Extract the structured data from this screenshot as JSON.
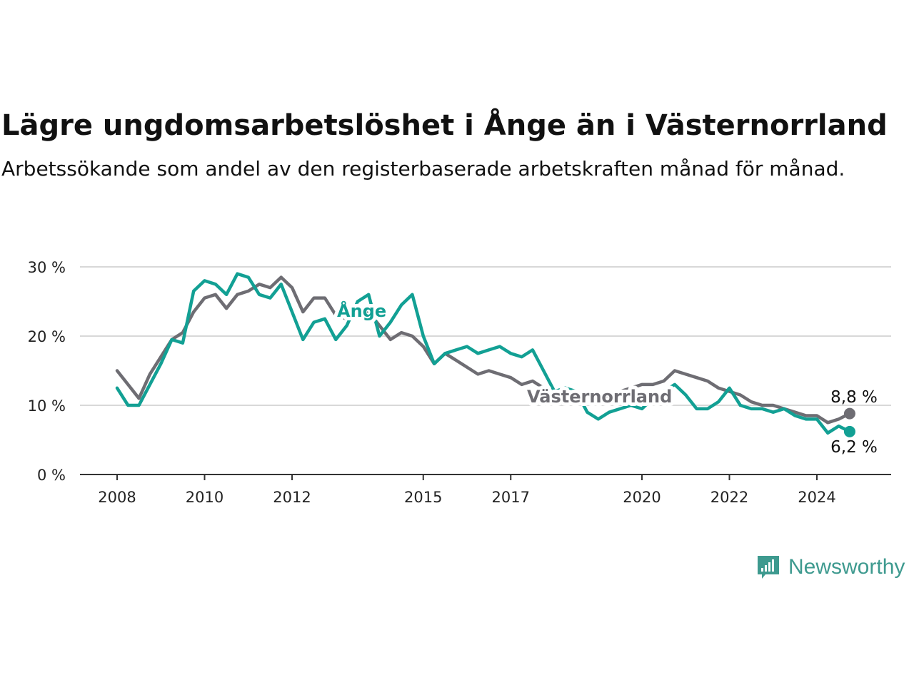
{
  "title": "Lägre ungdomsarbetslöshet i Ånge än i Västernorrland",
  "subtitle": "Arbetssökande som andel av den registerbaserade arbetskraften månad för månad.",
  "brand": {
    "name": "Newsworthy",
    "color": "#3e9a8f"
  },
  "chart_data": {
    "type": "line",
    "title": "Lägre ungdomsarbetslöshet i Ånge än i Västernorrland",
    "subtitle": "Arbetssökande som andel av den registerbaserade arbetskraften månad för månad.",
    "xlabel": "",
    "ylabel": "",
    "ylim": [
      0,
      30
    ],
    "yticks": [
      0,
      10,
      20,
      30
    ],
    "ytick_labels": [
      "0 %",
      "10 %",
      "20 %",
      "30 %"
    ],
    "xticks": [
      2008,
      2010,
      2012,
      2015,
      2017,
      2020,
      2022,
      2024
    ],
    "xtick_labels": [
      "2008",
      "2010",
      "2012",
      "2015",
      "2017",
      "2020",
      "2022",
      "2024"
    ],
    "grid": true,
    "legend": "inline labels",
    "series": [
      {
        "name": "Västernorrland",
        "color": "#6e6d73",
        "end_label": "8,8 %",
        "x": [
          2008.0,
          2008.25,
          2008.5,
          2008.75,
          2009.0,
          2009.25,
          2009.5,
          2009.75,
          2010.0,
          2010.25,
          2010.5,
          2010.75,
          2011.0,
          2011.25,
          2011.5,
          2011.75,
          2012.0,
          2012.25,
          2012.5,
          2012.75,
          2013.0,
          2013.25,
          2013.5,
          2013.75,
          2014.0,
          2014.25,
          2014.5,
          2014.75,
          2015.0,
          2015.25,
          2015.5,
          2015.75,
          2016.0,
          2016.25,
          2016.5,
          2016.75,
          2017.0,
          2017.25,
          2017.5,
          2017.75,
          2018.0,
          2018.25,
          2018.5,
          2018.75,
          2019.0,
          2019.25,
          2019.5,
          2019.75,
          2020.0,
          2020.25,
          2020.5,
          2020.75,
          2021.0,
          2021.25,
          2021.5,
          2021.75,
          2022.0,
          2022.25,
          2022.5,
          2022.75,
          2023.0,
          2023.25,
          2023.5,
          2023.75,
          2024.0,
          2024.25,
          2024.5,
          2024.75
        ],
        "values": [
          15.0,
          13.0,
          11.0,
          14.5,
          17.0,
          19.5,
          20.5,
          23.5,
          25.5,
          26.0,
          24.0,
          26.0,
          26.5,
          27.5,
          27.0,
          28.5,
          27.0,
          23.5,
          25.5,
          25.5,
          23.0,
          22.5,
          23.0,
          23.5,
          21.5,
          19.5,
          20.5,
          20.0,
          18.5,
          16.0,
          17.5,
          16.5,
          15.5,
          14.5,
          15.0,
          14.5,
          14.0,
          13.0,
          13.5,
          12.5,
          11.5,
          12.0,
          11.5,
          11.5,
          11.0,
          11.5,
          12.0,
          12.5,
          13.0,
          13.0,
          13.5,
          15.0,
          14.5,
          14.0,
          13.5,
          12.5,
          12.0,
          11.5,
          10.5,
          10.0,
          10.0,
          9.5,
          9.0,
          8.5,
          8.5,
          7.5,
          8.0,
          8.8
        ]
      },
      {
        "name": "Ånge",
        "color": "#12a094",
        "end_label": "6,2 %",
        "x": [
          2008.0,
          2008.25,
          2008.5,
          2008.75,
          2009.0,
          2009.25,
          2009.5,
          2009.75,
          2010.0,
          2010.25,
          2010.5,
          2010.75,
          2011.0,
          2011.25,
          2011.5,
          2011.75,
          2012.0,
          2012.25,
          2012.5,
          2012.75,
          2013.0,
          2013.25,
          2013.5,
          2013.75,
          2014.0,
          2014.25,
          2014.5,
          2014.75,
          2015.0,
          2015.25,
          2015.5,
          2015.75,
          2016.0,
          2016.25,
          2016.5,
          2016.75,
          2017.0,
          2017.25,
          2017.5,
          2017.75,
          2018.0,
          2018.25,
          2018.5,
          2018.75,
          2019.0,
          2019.25,
          2019.5,
          2019.75,
          2020.0,
          2020.25,
          2020.5,
          2020.75,
          2021.0,
          2021.25,
          2021.5,
          2021.75,
          2022.0,
          2022.25,
          2022.5,
          2022.75,
          2023.0,
          2023.25,
          2023.5,
          2023.75,
          2024.0,
          2024.25,
          2024.5,
          2024.75
        ],
        "values": [
          12.5,
          10.0,
          10.0,
          13.0,
          16.0,
          19.5,
          19.0,
          26.5,
          28.0,
          27.5,
          26.0,
          29.0,
          28.5,
          26.0,
          25.5,
          27.5,
          23.5,
          19.5,
          22.0,
          22.5,
          19.5,
          21.5,
          25.0,
          26.0,
          20.0,
          22.0,
          24.5,
          26.0,
          20.0,
          16.0,
          17.5,
          18.0,
          18.5,
          17.5,
          18.0,
          18.5,
          17.5,
          17.0,
          18.0,
          15.0,
          12.0,
          12.5,
          12.0,
          9.0,
          8.0,
          9.0,
          9.5,
          10.0,
          9.5,
          11.0,
          12.0,
          13.0,
          11.5,
          9.5,
          9.5,
          10.5,
          12.5,
          10.0,
          9.5,
          9.5,
          9.0,
          9.5,
          8.5,
          8.0,
          8.0,
          6.0,
          7.0,
          6.2
        ]
      }
    ]
  }
}
